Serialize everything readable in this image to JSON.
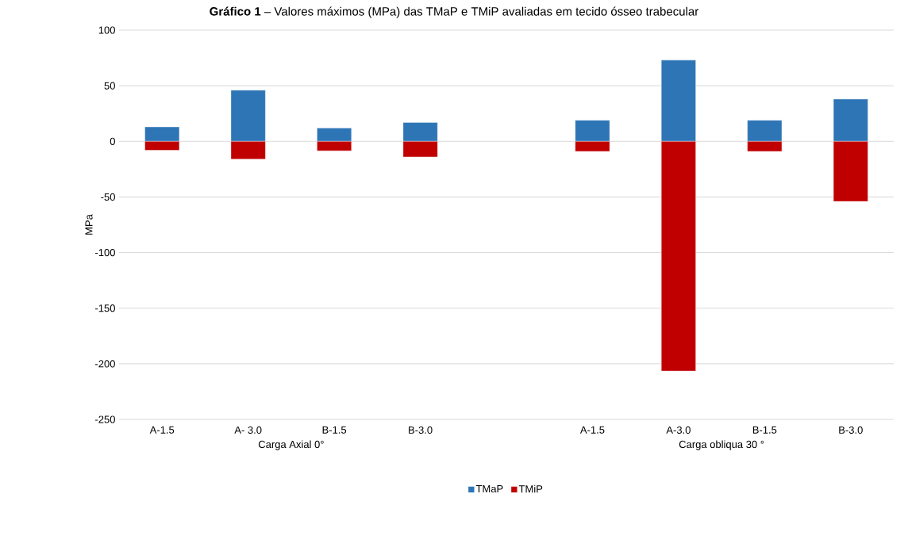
{
  "chart_data": {
    "type": "bar",
    "title": "**Gráfico 1** – Valores máximos (MPa) das TMaP e TMiP avaliadas em tecido ósseo trabecular",
    "ylabel": "MPa",
    "categories": [
      "A-1.5",
      "A- 3.0",
      "B-1.5",
      "B-3.0",
      null,
      "A-1.5",
      "A-3.0",
      "B-1.5",
      "B-3.0"
    ],
    "series": [
      {
        "name": "TMaP",
        "color": "#2e75b6",
        "values": [
          13,
          46,
          12,
          17,
          null,
          19,
          73,
          19,
          38
        ]
      },
      {
        "name": "TMiP",
        "color": "#c00000",
        "values": [
          -8,
          -16,
          -8.5,
          -14,
          null,
          -9,
          -206.5,
          -9,
          -54
        ]
      }
    ],
    "stacked": true,
    "ylim": [
      -250,
      100
    ],
    "yticks": [
      -250,
      -200,
      -150,
      -100,
      -50,
      0,
      50,
      100
    ],
    "grid": "y",
    "legend": "bottom",
    "annotations": [
      "Carga Axial 0°",
      "Carga obliqua 30 °"
    ]
  }
}
